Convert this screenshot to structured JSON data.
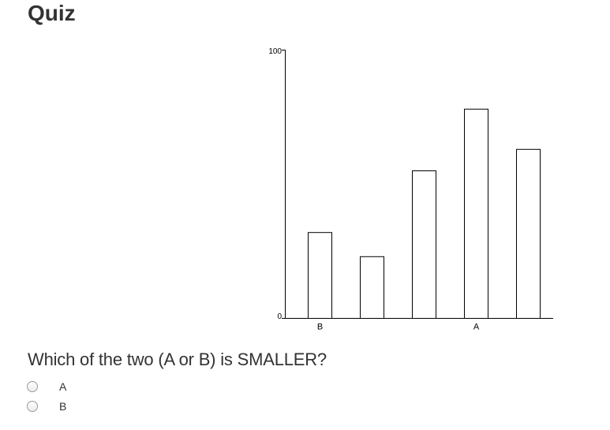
{
  "page": {
    "title": "Quiz"
  },
  "chart_data": {
    "type": "bar",
    "categories": [
      "B",
      "",
      "",
      "A",
      ""
    ],
    "values": [
      32,
      23,
      55,
      78,
      63
    ],
    "ylim": [
      0,
      100
    ],
    "y_ticks": [
      "0",
      "100"
    ],
    "grid": false,
    "bar_fill": "#ffffff",
    "bar_stroke": "#000000"
  },
  "question": {
    "text": "Which of the two (A or B) is SMALLER?",
    "options": [
      {
        "label": "A"
      },
      {
        "label": "B"
      }
    ]
  }
}
